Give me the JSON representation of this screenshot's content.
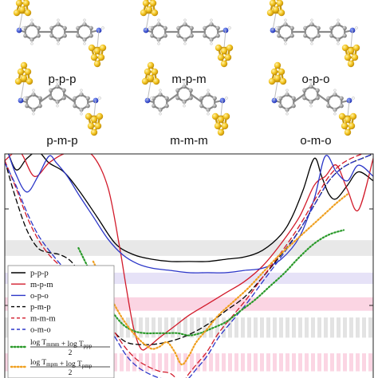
{
  "molecules": [
    {
      "label": "p-p-p"
    },
    {
      "label": "m-p-m"
    },
    {
      "label": "o-p-o"
    },
    {
      "label": "p-m-p"
    },
    {
      "label": "m-m-m"
    },
    {
      "label": "o-m-o"
    }
  ],
  "chart_data": {
    "type": "line",
    "title": "",
    "xlabel": "",
    "ylabel": "",
    "x_range": [
      0,
      1
    ],
    "y_range": [
      0,
      1
    ],
    "grid": false,
    "legend_position": "bottom-left",
    "shaded_bands": [
      {
        "color": "#e8e8e8",
        "style": "solid",
        "y": [
          0.545,
          0.615
        ]
      },
      {
        "color": "#e6e2f7",
        "style": "solid",
        "y": [
          0.42,
          0.47
        ]
      },
      {
        "color": "#fbd5e3",
        "style": "solid",
        "y": [
          0.3,
          0.36
        ]
      },
      {
        "color": "#e3e3e3",
        "style": "dashed",
        "y": [
          0.18,
          0.27
        ]
      },
      {
        "color": "#fbd5e3",
        "style": "dashed",
        "y": [
          0.03,
          0.11
        ]
      }
    ],
    "series": [
      {
        "name": "p-p-p",
        "color": "#000000",
        "dash": "solid",
        "x": [
          0.0,
          0.03,
          0.06,
          0.09,
          0.12,
          0.16,
          0.2,
          0.25,
          0.3,
          0.35,
          0.4,
          0.45,
          0.5,
          0.55,
          0.6,
          0.65,
          0.7,
          0.75,
          0.78,
          0.81,
          0.84,
          0.86,
          0.88,
          0.9,
          0.93,
          0.96,
          1.0
        ],
        "y": [
          1.05,
          0.93,
          0.98,
          1.01,
          0.96,
          0.92,
          0.84,
          0.72,
          0.6,
          0.55,
          0.53,
          0.52,
          0.52,
          0.52,
          0.53,
          0.54,
          0.57,
          0.64,
          0.72,
          0.84,
          0.98,
          0.9,
          0.82,
          0.8,
          0.86,
          0.92,
          0.88
        ]
      },
      {
        "name": "m-p-m",
        "color": "#d21b2b",
        "dash": "solid",
        "x": [
          0.0,
          0.04,
          0.08,
          0.12,
          0.16,
          0.2,
          0.24,
          0.28,
          0.31,
          0.33,
          0.35,
          0.37,
          0.39,
          0.42,
          0.46,
          0.5,
          0.55,
          0.6,
          0.65,
          0.7,
          0.75,
          0.8,
          0.84,
          0.87,
          0.9,
          0.93,
          0.96,
          1.0
        ],
        "y": [
          0.97,
          1.01,
          0.9,
          0.96,
          1.0,
          1.01,
          0.99,
          0.85,
          0.6,
          0.4,
          0.22,
          0.13,
          0.14,
          0.18,
          0.23,
          0.28,
          0.33,
          0.38,
          0.43,
          0.5,
          0.6,
          0.72,
          0.86,
          0.9,
          0.95,
          0.84,
          0.75,
          0.98
        ]
      },
      {
        "name": "o-p-o",
        "color": "#2b36c8",
        "dash": "solid",
        "x": [
          0.0,
          0.03,
          0.06,
          0.09,
          0.12,
          0.14,
          0.17,
          0.2,
          0.24,
          0.28,
          0.32,
          0.36,
          0.4,
          0.45,
          0.5,
          0.55,
          0.6,
          0.65,
          0.7,
          0.75,
          0.8,
          0.84,
          0.87,
          0.9,
          0.93,
          0.96,
          1.0
        ],
        "y": [
          1.05,
          0.91,
          0.83,
          0.9,
          0.99,
          0.96,
          0.9,
          0.82,
          0.72,
          0.62,
          0.55,
          0.51,
          0.49,
          0.48,
          0.47,
          0.47,
          0.47,
          0.48,
          0.49,
          0.53,
          0.63,
          0.8,
          0.99,
          0.92,
          0.88,
          0.95,
          0.9
        ]
      },
      {
        "name": "p-m-p",
        "color": "#000000",
        "dash": "dashed",
        "x": [
          0.0,
          0.03,
          0.06,
          0.09,
          0.12,
          0.15,
          0.18,
          0.21,
          0.24,
          0.27,
          0.3,
          0.33,
          0.36,
          0.4,
          0.44,
          0.48,
          0.52,
          0.56,
          0.6,
          0.65,
          0.7,
          0.75,
          0.8,
          0.85,
          0.88,
          0.91,
          0.94,
          0.97,
          1.0
        ],
        "y": [
          0.97,
          0.8,
          0.66,
          0.58,
          0.56,
          0.55,
          0.52,
          0.45,
          0.36,
          0.27,
          0.2,
          0.16,
          0.15,
          0.15,
          0.16,
          0.18,
          0.21,
          0.25,
          0.3,
          0.36,
          0.45,
          0.55,
          0.66,
          0.8,
          0.88,
          0.93,
          0.96,
          0.98,
          1.0
        ]
      },
      {
        "name": "m-m-m",
        "color": "#d21b2b",
        "dash": "dashed",
        "x": [
          0.0,
          0.03,
          0.06,
          0.09,
          0.12,
          0.15,
          0.18,
          0.21,
          0.24,
          0.27,
          0.3,
          0.33,
          0.36,
          0.39,
          0.42,
          0.45,
          0.48,
          0.5,
          0.52,
          0.55,
          0.58,
          0.62,
          0.66,
          0.7,
          0.75,
          0.8,
          0.85,
          0.88,
          0.91,
          0.94,
          0.97,
          1.0
        ],
        "y": [
          0.97,
          0.85,
          0.72,
          0.62,
          0.55,
          0.5,
          0.45,
          0.4,
          0.35,
          0.28,
          0.2,
          0.13,
          0.08,
          0.05,
          0.03,
          0.02,
          -0.02,
          0.02,
          0.06,
          0.12,
          0.2,
          0.28,
          0.36,
          0.45,
          0.56,
          0.68,
          0.82,
          0.9,
          0.95,
          0.98,
          1.0,
          1.02
        ]
      },
      {
        "name": "o-m-o",
        "color": "#2b36c8",
        "dash": "dashed",
        "x": [
          0.0,
          0.03,
          0.06,
          0.09,
          0.12,
          0.15,
          0.18,
          0.21,
          0.24,
          0.27,
          0.3,
          0.33,
          0.36,
          0.39,
          0.42,
          0.45,
          0.48,
          0.5,
          0.52,
          0.55,
          0.58,
          0.62,
          0.66,
          0.7,
          0.75,
          0.8,
          0.85,
          0.88,
          0.91,
          0.94,
          0.97,
          1.0
        ],
        "y": [
          0.96,
          0.86,
          0.74,
          0.64,
          0.57,
          0.51,
          0.46,
          0.4,
          0.34,
          0.26,
          0.18,
          0.1,
          0.05,
          0.02,
          0.0,
          -0.01,
          -0.03,
          0.0,
          0.04,
          0.1,
          0.18,
          0.26,
          0.34,
          0.43,
          0.54,
          0.66,
          0.8,
          0.88,
          0.93,
          0.96,
          0.98,
          1.0
        ]
      },
      {
        "name": "log T_mmm + log T_ppp / 2",
        "color": "#2a9a2a",
        "dash": "dotted",
        "x": [
          0.2,
          0.23,
          0.26,
          0.29,
          0.32,
          0.35,
          0.38,
          0.41,
          0.44,
          0.47,
          0.5,
          0.53,
          0.56,
          0.6,
          0.64,
          0.68,
          0.72,
          0.76,
          0.8,
          0.84,
          0.88,
          0.92
        ],
        "y": [
          0.58,
          0.48,
          0.38,
          0.3,
          0.24,
          0.21,
          0.2,
          0.2,
          0.2,
          0.2,
          0.19,
          0.2,
          0.22,
          0.25,
          0.3,
          0.35,
          0.41,
          0.47,
          0.54,
          0.6,
          0.64,
          0.66
        ]
      },
      {
        "name": "log T_mpm + log T_pmp / 2",
        "color": "#f0a020",
        "dash": "dotted",
        "x": [
          0.24,
          0.27,
          0.3,
          0.33,
          0.36,
          0.38,
          0.4,
          0.42,
          0.44,
          0.46,
          0.48,
          0.5,
          0.52,
          0.55,
          0.58,
          0.62,
          0.66,
          0.7,
          0.74,
          0.78,
          0.82,
          0.86,
          0.9,
          0.93
        ],
        "y": [
          0.52,
          0.42,
          0.32,
          0.24,
          0.18,
          0.15,
          0.13,
          0.14,
          0.16,
          0.12,
          0.06,
          0.1,
          0.16,
          0.22,
          0.28,
          0.34,
          0.4,
          0.47,
          0.54,
          0.6,
          0.66,
          0.72,
          0.78,
          0.82
        ]
      }
    ],
    "legend": {
      "entries": [
        "p-p-p",
        "m-p-m",
        "o-p-o",
        "p-m-p",
        "m-m-m",
        "o-m-o"
      ],
      "formula_1": {
        "num": "log T_mmm + log T_ppp",
        "den": "2"
      },
      "formula_2": {
        "num": "log T_mpm + log T_pmp",
        "den": "2"
      }
    }
  }
}
